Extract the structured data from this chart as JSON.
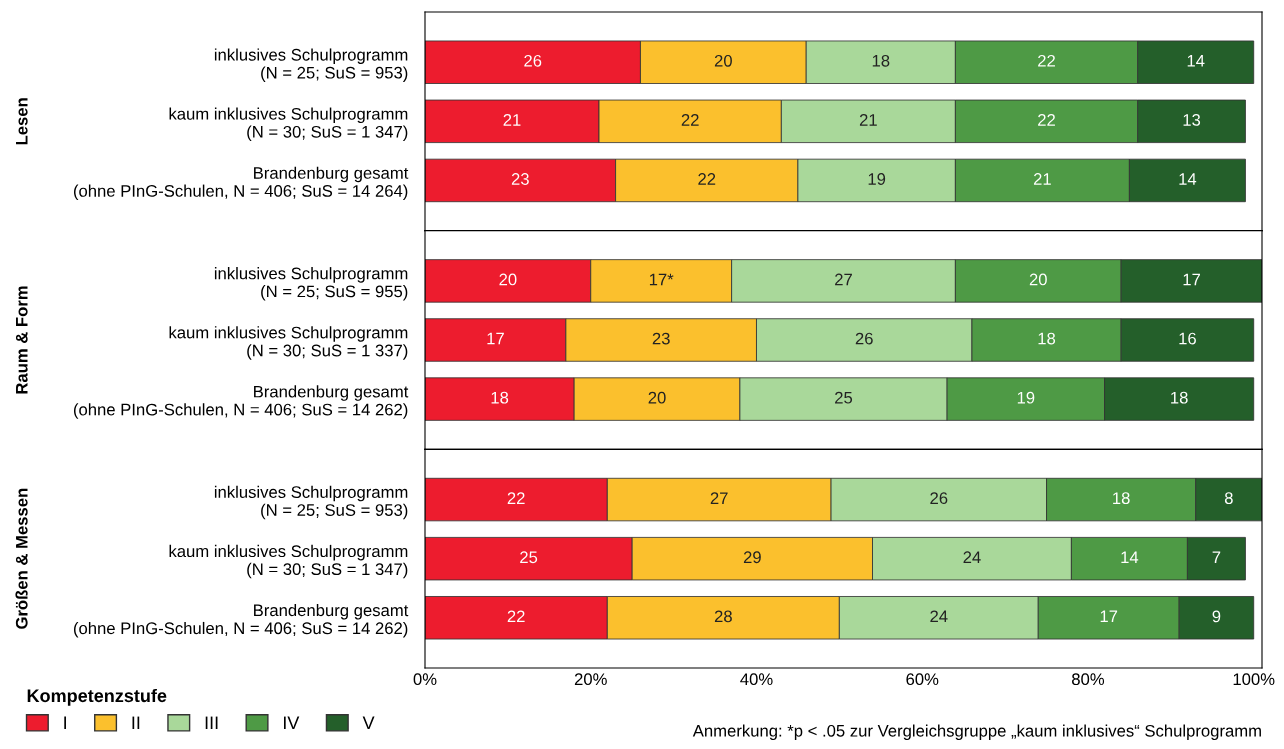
{
  "chart_data": [
    {
      "type": "bar",
      "orientation": "horizontal",
      "stacked": true,
      "ylabel": "Lesen",
      "data_labels": true,
      "tick_labels": "y",
      "legend": "bottom left",
      "legend_title": "Kompetenzstufe",
      "xlim": [
        0,
        101
      ],
      "categories": [
        "inklusives Schulprogramm\n(N = 25; SuS = 953)",
        "kaum inklusives Schulprogramm\n(N = 30; SuS = 1 347)",
        "Brandenburg gesamt\n(ohne PInG-Schulen, N = 406; SuS = 14 264)"
      ],
      "series": [
        {
          "name": "I",
          "color": "#ed1c2e",
          "values": [
            26,
            21,
            23
          ]
        },
        {
          "name": "II",
          "color": "#fbc02d",
          "values": [
            20,
            22,
            22
          ]
        },
        {
          "name": "III",
          "color": "#a9d89a",
          "values": [
            18,
            21,
            19
          ]
        },
        {
          "name": "IV",
          "color": "#4e9a45",
          "values": [
            22,
            22,
            21
          ]
        },
        {
          "name": "V",
          "color": "#245f2a",
          "values": [
            14,
            13,
            14
          ]
        }
      ]
    },
    {
      "type": "bar",
      "orientation": "horizontal",
      "stacked": true,
      "ylabel": "Raum & Form",
      "data_labels": true,
      "tick_labels": "y",
      "xlim": [
        0,
        101
      ],
      "categories": [
        "inklusives Schulprogramm\n(N = 25; SuS = 955)",
        "kaum inklusives Schulprogramm\n(N = 30; SuS = 1 337)",
        "Brandenburg gesamt\n(ohne PInG-Schulen, N = 406; SuS = 14 262)"
      ],
      "series": [
        {
          "color": "#ed1c2e",
          "values": [
            20,
            17,
            18
          ]
        },
        {
          "color": "#fbc02d",
          "values": [
            17,
            23,
            20
          ],
          "value_labels": [
            "17*",
            "23",
            "20"
          ]
        },
        {
          "color": "#a9d89a",
          "values": [
            27,
            26,
            25
          ]
        },
        {
          "color": "#4e9a45",
          "values": [
            20,
            18,
            19
          ]
        },
        {
          "color": "#245f2a",
          "values": [
            17,
            16,
            18
          ]
        }
      ]
    },
    {
      "type": "bar",
      "orientation": "horizontal",
      "stacked": true,
      "ylabel": "Größen & Messen",
      "data_labels": true,
      "xlim": [
        0,
        101
      ],
      "xticks": [
        {
          "value": 0,
          "label": "0%"
        },
        {
          "value": 20,
          "label": "20%"
        },
        {
          "value": 40,
          "label": "40%"
        },
        {
          "value": 60,
          "label": "60%"
        },
        {
          "value": 80,
          "label": "80%"
        },
        {
          "value": 100,
          "label": "100%"
        }
      ],
      "categories": [
        "inklusives Schulprogramm\n(N = 25; SuS = 953)",
        "kaum inklusives Schulprogramm\n(N = 30; SuS = 1 347)",
        "Brandenburg gesamt\n(ohne PInG-Schulen, N = 406; SuS = 14 262)"
      ],
      "annotations": [
        "Anmerkung: *p < .05 zur Vergleichsgruppe „kaum inklusives“ Schulprogramm"
      ],
      "series": [
        {
          "color": "#ed1c2e",
          "values": [
            22,
            25,
            22
          ]
        },
        {
          "color": "#fbc02d",
          "values": [
            27,
            29,
            28
          ]
        },
        {
          "color": "#a9d89a",
          "values": [
            26,
            24,
            24
          ]
        },
        {
          "color": "#4e9a45",
          "values": [
            18,
            14,
            17
          ]
        },
        {
          "color": "#245f2a",
          "values": [
            8,
            7,
            9
          ]
        }
      ]
    }
  ]
}
